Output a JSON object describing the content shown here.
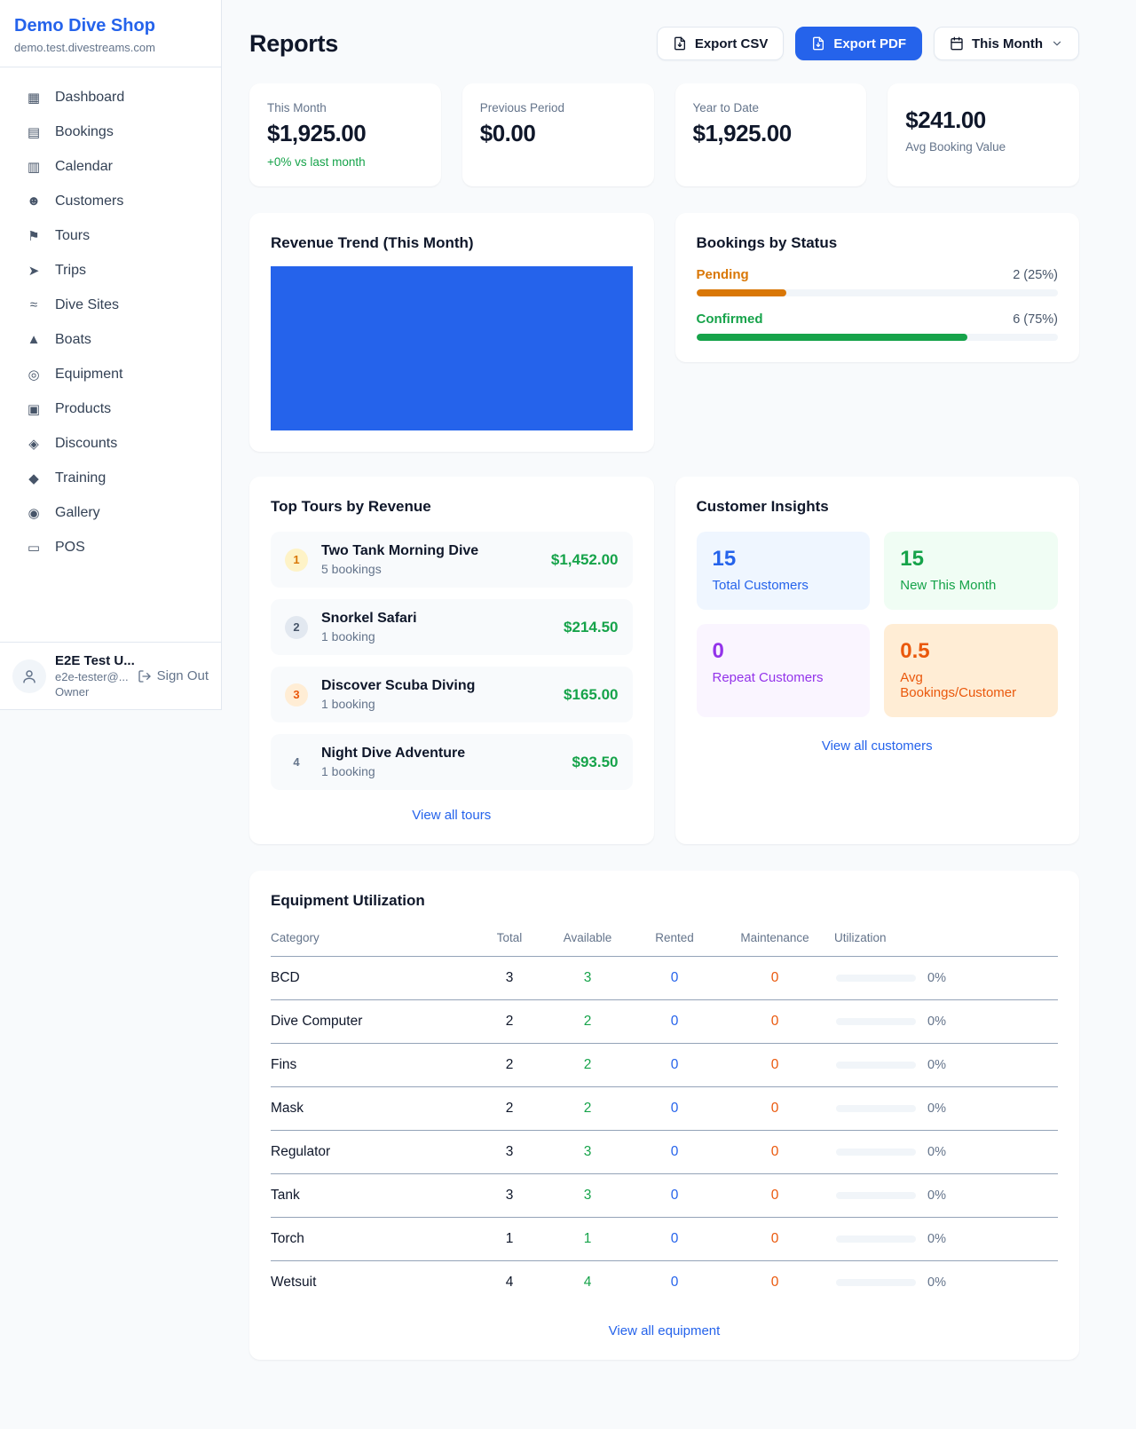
{
  "colors": {
    "accent": "#2563eb",
    "green": "#16a34a",
    "amber": "#d97706",
    "orange": "#ea580c",
    "purple": "#9333ea"
  },
  "brand": {
    "name": "Demo Dive Shop",
    "domain": "demo.test.divestreams.com"
  },
  "sidebar": {
    "items": [
      {
        "glyph": "▦",
        "icon": "bar-chart",
        "label": "Dashboard"
      },
      {
        "glyph": "▤",
        "icon": "calendar-page",
        "label": "Bookings"
      },
      {
        "glyph": "▥",
        "icon": "spiral-calendar",
        "label": "Calendar"
      },
      {
        "glyph": "☻",
        "icon": "people",
        "label": "Customers"
      },
      {
        "glyph": "⚑",
        "icon": "desert-island",
        "label": "Tours"
      },
      {
        "glyph": "➤",
        "icon": "speedboat",
        "label": "Trips"
      },
      {
        "glyph": "≈",
        "icon": "water-wave",
        "label": "Dive Sites"
      },
      {
        "glyph": "▲",
        "icon": "sailboat",
        "label": "Boats"
      },
      {
        "glyph": "◎",
        "icon": "diving-mask",
        "label": "Equipment"
      },
      {
        "glyph": "▣",
        "icon": "package",
        "label": "Products"
      },
      {
        "glyph": "◈",
        "icon": "price-tag",
        "label": "Discounts"
      },
      {
        "glyph": "◆",
        "icon": "graduation-cap",
        "label": "Training"
      },
      {
        "glyph": "◉",
        "icon": "camera",
        "label": "Gallery"
      },
      {
        "glyph": "▭",
        "icon": "credit-card",
        "label": "POS"
      }
    ]
  },
  "user": {
    "name": "E2E Test U...",
    "email": "e2e-tester@...",
    "role": "Owner",
    "sign_out": "Sign Out"
  },
  "header": {
    "title": "Reports",
    "export_csv": "Export CSV",
    "export_pdf": "Export PDF",
    "period": "This Month"
  },
  "stats": [
    {
      "label_top": "This Month",
      "value": "$1,925.00",
      "delta": "+0% vs last month"
    },
    {
      "label_top": "Previous Period",
      "value": "$0.00"
    },
    {
      "label_top": "Year to Date",
      "value": "$1,925.00"
    },
    {
      "value": "$241.00",
      "label_bottom": "Avg Booking Value"
    }
  ],
  "revenue_trend": {
    "title": "Revenue Trend (This Month)"
  },
  "bookings_status": {
    "title": "Bookings by Status",
    "rows": [
      {
        "label": "Pending",
        "value": "2 (25%)",
        "percent": 25,
        "theme": "amber"
      },
      {
        "label": "Confirmed",
        "value": "6 (75%)",
        "percent": 75,
        "theme": "green"
      }
    ]
  },
  "top_tours": {
    "title": "Top Tours by Revenue",
    "link": "View all tours",
    "items": [
      {
        "rank": "1",
        "badge": "gold",
        "name": "Two Tank Morning Dive",
        "bookings": "5 bookings",
        "revenue": "$1,452.00"
      },
      {
        "rank": "2",
        "badge": "gray",
        "name": "Snorkel Safari",
        "bookings": "1 booking",
        "revenue": "$214.50"
      },
      {
        "rank": "3",
        "badge": "orange",
        "name": "Discover Scuba Diving",
        "bookings": "1 booking",
        "revenue": "$165.00"
      },
      {
        "rank": "4",
        "badge": "plain",
        "name": "Night Dive Adventure",
        "bookings": "1 booking",
        "revenue": "$93.50"
      }
    ]
  },
  "customer_insights": {
    "title": "Customer Insights",
    "link": "View all customers",
    "tiles": [
      {
        "value": "15",
        "label": "Total Customers",
        "theme": "blue"
      },
      {
        "value": "15",
        "label": "New This Month",
        "theme": "green"
      },
      {
        "value": "0",
        "label": "Repeat Customers",
        "theme": "purple"
      },
      {
        "value": "0.5",
        "label": "Avg Bookings/Customer",
        "theme": "orange"
      }
    ]
  },
  "equipment": {
    "title": "Equipment Utilization",
    "link": "View all equipment",
    "columns": [
      "Category",
      "Total",
      "Available",
      "Rented",
      "Maintenance",
      "Utilization"
    ],
    "rows": [
      {
        "category": "BCD",
        "total": "3",
        "available": "3",
        "rented": "0",
        "maintenance": "0",
        "percent": 0,
        "utilization": "0%"
      },
      {
        "category": "Dive Computer",
        "total": "2",
        "available": "2",
        "rented": "0",
        "maintenance": "0",
        "percent": 0,
        "utilization": "0%"
      },
      {
        "category": "Fins",
        "total": "2",
        "available": "2",
        "rented": "0",
        "maintenance": "0",
        "percent": 0,
        "utilization": "0%"
      },
      {
        "category": "Mask",
        "total": "2",
        "available": "2",
        "rented": "0",
        "maintenance": "0",
        "percent": 0,
        "utilization": "0%"
      },
      {
        "category": "Regulator",
        "total": "3",
        "available": "3",
        "rented": "0",
        "maintenance": "0",
        "percent": 0,
        "utilization": "0%"
      },
      {
        "category": "Tank",
        "total": "3",
        "available": "3",
        "rented": "0",
        "maintenance": "0",
        "percent": 0,
        "utilization": "0%"
      },
      {
        "category": "Torch",
        "total": "1",
        "available": "1",
        "rented": "0",
        "maintenance": "0",
        "percent": 0,
        "utilization": "0%"
      },
      {
        "category": "Wetsuit",
        "total": "4",
        "available": "4",
        "rented": "0",
        "maintenance": "0",
        "percent": 0,
        "utilization": "0%"
      }
    ]
  }
}
